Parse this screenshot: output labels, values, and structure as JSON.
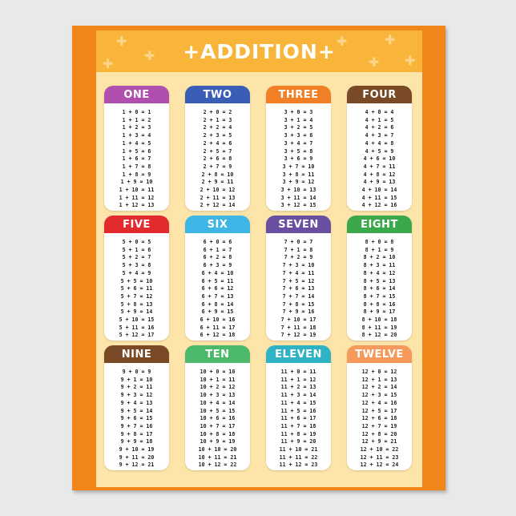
{
  "title": "+ADDITION+",
  "cards": [
    {
      "label": "ONE",
      "color": "#b04fae",
      "equations": [
        "1 + 0 = 1",
        "1 + 1 = 2",
        "1 + 2 = 3",
        "1 + 3 = 4",
        "1 + 4 = 5",
        "1 + 5 = 6",
        "1 + 6 = 7",
        "1 + 7 = 8",
        "1 + 8 = 9",
        "1 + 9 = 10",
        "1 + 10 = 11",
        "1 + 11 = 12",
        "1 + 12 = 13"
      ]
    },
    {
      "label": "TWO",
      "color": "#3a5eb5",
      "equations": [
        "2 + 0 = 2",
        "2 + 1 = 3",
        "2 + 2 = 4",
        "2 + 3 = 5",
        "2 + 4 = 6",
        "2 + 5 = 7",
        "2 + 6 = 8",
        "2 + 7 = 9",
        "2 + 8 = 10",
        "2 + 9 = 11",
        "2 + 10 = 12",
        "2 + 11 = 13",
        "2 + 12 = 14"
      ]
    },
    {
      "label": "THREE",
      "color": "#f07f25",
      "equations": [
        "3 + 0 = 3",
        "3 + 1 = 4",
        "3 + 2 = 5",
        "3 + 3 = 6",
        "3 + 4 = 7",
        "3 + 5 = 8",
        "3 + 6 = 9",
        "3 + 7 = 10",
        "3 + 8 = 11",
        "3 + 9 = 12",
        "3 + 10 = 13",
        "3 + 11 = 14",
        "3 + 12 = 15"
      ]
    },
    {
      "label": "FOUR",
      "color": "#7a4a26",
      "equations": [
        "4 + 0 = 4",
        "4 + 1 = 5",
        "4 + 2 = 6",
        "4 + 3 = 7",
        "4 + 4 = 8",
        "4 + 5 = 9",
        "4 + 6 = 10",
        "4 + 7 = 11",
        "4 + 8 = 12",
        "4 + 9 = 13",
        "4 + 10 = 14",
        "4 + 11 = 15",
        "4 + 12 = 16"
      ]
    },
    {
      "label": "FIVE",
      "color": "#e32b2f",
      "equations": [
        "5 + 0 = 5",
        "5 + 1 = 6",
        "5 + 2 = 7",
        "5 + 3 = 8",
        "5 + 4 = 9",
        "5 + 5 = 10",
        "5 + 6 = 11",
        "5 + 7 = 12",
        "5 + 8 = 13",
        "5 + 9 = 14",
        "5 + 10 = 15",
        "5 + 11 = 16",
        "5 + 12 = 17"
      ]
    },
    {
      "label": "SIX",
      "color": "#3db5e5",
      "equations": [
        "6 + 0 = 6",
        "6 + 1 = 7",
        "6 + 2 = 8",
        "6 + 3 = 9",
        "6 + 4 = 10",
        "6 + 5 = 11",
        "6 + 6 = 12",
        "6 + 7 = 13",
        "6 + 8 = 14",
        "6 + 9 = 15",
        "6 + 10 = 16",
        "6 + 11 = 17",
        "6 + 12 = 18"
      ]
    },
    {
      "label": "SEVEN",
      "color": "#6a4ea0",
      "equations": [
        "7 + 0 = 7",
        "7 + 1 = 8",
        "7 + 2 = 9",
        "7 + 3 = 10",
        "7 + 4 = 11",
        "7 + 5 = 12",
        "7 + 6 = 13",
        "7 + 7 = 14",
        "7 + 8 = 15",
        "7 + 9 = 16",
        "7 + 10 = 17",
        "7 + 11 = 18",
        "7 + 12 = 19"
      ]
    },
    {
      "label": "EIGHT",
      "color": "#3aa84b",
      "equations": [
        "8 + 0 = 8",
        "8 + 1 = 9",
        "8 + 2 = 10",
        "8 + 3 = 11",
        "8 + 4 = 12",
        "8 + 5 = 13",
        "8 + 6 = 14",
        "8 + 7 = 15",
        "8 + 8 = 16",
        "8 + 9 = 17",
        "8 + 10 = 18",
        "8 + 11 = 19",
        "8 + 12 = 20"
      ]
    },
    {
      "label": "NINE",
      "color": "#7a4a26",
      "equations": [
        "9 + 0 = 9",
        "9 + 1 = 10",
        "9 + 2 = 11",
        "9 + 3 = 12",
        "9 + 4 = 13",
        "9 + 5 = 14",
        "9 + 6 = 15",
        "9 + 7 = 16",
        "9 + 8 = 17",
        "9 + 9 = 18",
        "9 + 10 = 19",
        "9 + 11 = 20",
        "9 + 12 = 21"
      ]
    },
    {
      "label": "TEN",
      "color": "#4bb86a",
      "equations": [
        "10 + 0 = 10",
        "10 + 1 = 11",
        "10 + 2 = 12",
        "10 + 3 = 13",
        "10 + 4 = 14",
        "10 + 5 = 15",
        "10 + 6 = 16",
        "10 + 7 = 17",
        "10 + 8 = 18",
        "10 + 9 = 19",
        "10 + 10 = 20",
        "10 + 11 = 21",
        "10 + 12 = 22"
      ]
    },
    {
      "label": "ELEVEN",
      "color": "#2fb2c4",
      "equations": [
        "11 + 0 = 11",
        "11 + 1 = 12",
        "11 + 2 = 13",
        "11 + 3 = 14",
        "11 + 4 = 15",
        "11 + 5 = 16",
        "11 + 6 = 17",
        "11 + 7 = 18",
        "11 + 8 = 19",
        "11 + 9 = 20",
        "11 + 10 = 21",
        "11 + 11 = 22",
        "11 + 12 = 23"
      ]
    },
    {
      "label": "TWELVE",
      "color": "#f59a5a",
      "equations": [
        "12 + 0 = 12",
        "12 + 1 = 13",
        "12 + 2 = 14",
        "12 + 3 = 15",
        "12 + 4 = 16",
        "12 + 5 = 17",
        "12 + 6 = 18",
        "12 + 7 = 19",
        "12 + 8 = 20",
        "12 + 9 = 21",
        "12 + 10 = 22",
        "12 + 11 = 23",
        "12 + 12 = 24"
      ]
    }
  ]
}
